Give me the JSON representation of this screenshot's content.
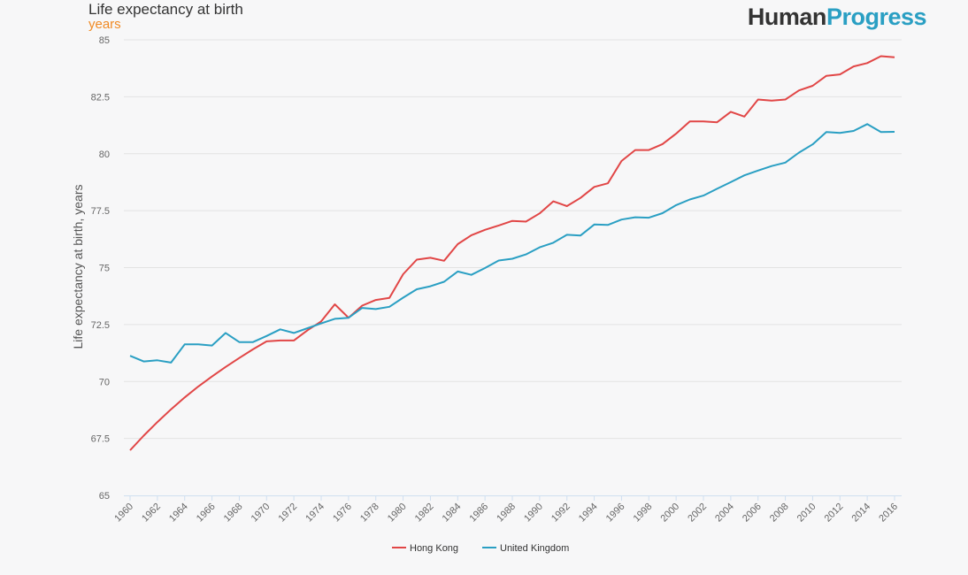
{
  "header": {
    "title": "Life expectancy at birth",
    "subtitle": "years",
    "logo_part1": "Human",
    "logo_part2": "Progress"
  },
  "colors": {
    "logo_dark": "#333333",
    "logo_accent": "#2a9fc3",
    "subtitle": "#f08a24",
    "gridline": "#e3e3e3",
    "axis": "#cfdff0"
  },
  "chart_data": {
    "type": "line",
    "title": "Life expectancy at birth",
    "subtitle": "years",
    "ylabel": "Life expectancy at birth, years",
    "xlabel": "",
    "x": [
      1960,
      1961,
      1962,
      1963,
      1964,
      1965,
      1966,
      1967,
      1968,
      1969,
      1970,
      1971,
      1972,
      1973,
      1974,
      1975,
      1976,
      1977,
      1978,
      1979,
      1980,
      1981,
      1982,
      1983,
      1984,
      1985,
      1986,
      1987,
      1988,
      1989,
      1990,
      1991,
      1992,
      1993,
      1994,
      1995,
      1996,
      1997,
      1998,
      1999,
      2000,
      2001,
      2002,
      2003,
      2004,
      2005,
      2006,
      2007,
      2008,
      2009,
      2010,
      2011,
      2012,
      2013,
      2014,
      2015,
      2016
    ],
    "xlim": [
      1960,
      2016
    ],
    "ylim": [
      65,
      85
    ],
    "yticks": [
      "65",
      "67.5",
      "70",
      "72.5",
      "75",
      "77.5",
      "80",
      "82.5",
      "85"
    ],
    "ytick_values": [
      65,
      67.5,
      70,
      72.5,
      75,
      77.5,
      80,
      82.5,
      85
    ],
    "xticks": [
      "1960",
      "1962",
      "1964",
      "1966",
      "1968",
      "1970",
      "1972",
      "1974",
      "1976",
      "1978",
      "1980",
      "1982",
      "1984",
      "1986",
      "1988",
      "1990",
      "1992",
      "1994",
      "1996",
      "1998",
      "2000",
      "2002",
      "2004",
      "2006",
      "2008",
      "2010",
      "2012",
      "2014",
      "2016"
    ],
    "grid": true,
    "legend_position": "bottom-center",
    "series": [
      {
        "name": "Hong Kong",
        "color": "#e14646",
        "values": [
          66.98,
          67.62,
          68.22,
          68.78,
          69.3,
          69.78,
          70.22,
          70.64,
          71.03,
          71.41,
          71.76,
          71.8,
          71.8,
          72.25,
          72.64,
          73.39,
          72.8,
          73.33,
          73.58,
          73.67,
          74.71,
          75.35,
          75.43,
          75.3,
          76.03,
          76.42,
          76.66,
          76.85,
          77.05,
          77.02,
          77.38,
          77.91,
          77.7,
          78.06,
          78.54,
          78.7,
          79.68,
          80.16,
          80.16,
          80.42,
          80.88,
          81.42,
          81.42,
          81.38,
          81.84,
          81.63,
          82.38,
          82.33,
          82.38,
          82.78,
          82.98,
          83.42,
          83.48,
          83.83,
          83.98,
          84.28,
          84.23
        ]
      },
      {
        "name": "United Kingdom",
        "color": "#2a9fc3",
        "values": [
          71.13,
          70.88,
          70.93,
          70.83,
          71.63,
          71.63,
          71.58,
          72.13,
          71.73,
          71.73,
          72.0,
          72.29,
          72.13,
          72.34,
          72.55,
          72.75,
          72.8,
          73.23,
          73.18,
          73.28,
          73.68,
          74.05,
          74.18,
          74.38,
          74.83,
          74.68,
          74.98,
          75.31,
          75.39,
          75.58,
          75.89,
          76.09,
          76.44,
          76.41,
          76.89,
          76.87,
          77.11,
          77.21,
          77.19,
          77.39,
          77.74,
          77.99,
          78.16,
          78.46,
          78.75,
          79.05,
          79.26,
          79.46,
          79.61,
          80.05,
          80.41,
          80.95,
          80.91,
          81.0,
          81.3,
          80.95,
          80.96
        ]
      }
    ]
  }
}
